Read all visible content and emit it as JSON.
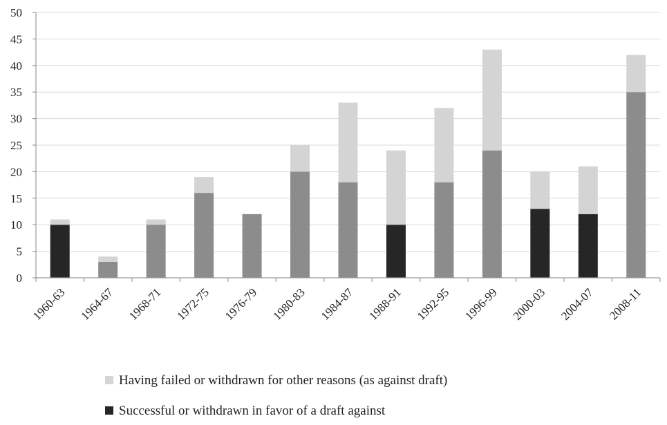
{
  "chart_data": {
    "type": "bar",
    "stacked": true,
    "categories": [
      "1960-63",
      "1964-67",
      "1968-71",
      "1972-75",
      "1976-79",
      "1980-83",
      "1984-87",
      "1988-91",
      "1992-95",
      "1996-99",
      "2000-03",
      "2004-07",
      "2008-11"
    ],
    "bottom_series": {
      "values": [
        10,
        3,
        10,
        16,
        12,
        20,
        18,
        10,
        18,
        24,
        13,
        12,
        35
      ],
      "bar_colors": [
        "#262626",
        "#8c8c8c",
        "#8c8c8c",
        "#8c8c8c",
        "#8c8c8c",
        "#8c8c8c",
        "#8c8c8c",
        "#262626",
        "#8c8c8c",
        "#8c8c8c",
        "#262626",
        "#262626",
        "#8c8c8c"
      ]
    },
    "top_series": {
      "name": "Having failed or withdrawn for other reasons (as against draft)",
      "values": [
        1,
        1,
        1,
        3,
        0,
        5,
        15,
        14,
        14,
        19,
        7,
        9,
        7
      ],
      "color": "#d4d4d4"
    },
    "legend": [
      {
        "label": "Having failed or withdrawn for other reasons (as against draft)",
        "color": "#d4d4d4"
      },
      {
        "label": "Successful or withdrawn in favor of a draft against",
        "color": "#262626"
      }
    ],
    "yticks": [
      0,
      5,
      10,
      15,
      20,
      25,
      30,
      35,
      40,
      45,
      50
    ],
    "ylim": [
      0,
      50
    ],
    "grid": true,
    "legend_placement": "bottom",
    "title": "",
    "xlabel": "",
    "ylabel": ""
  }
}
